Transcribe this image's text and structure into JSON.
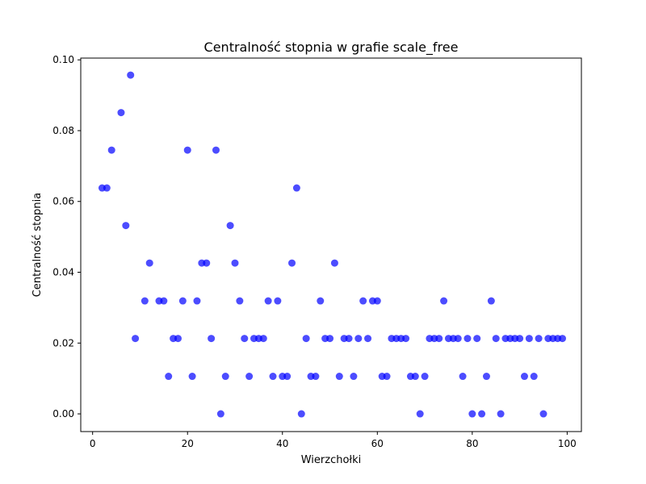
{
  "chart_data": {
    "type": "scatter",
    "title": "Centralność stopnia w grafie scale_free",
    "xlabel": "Wierzchołki",
    "ylabel": "Centralność stopnia",
    "xlim": [
      -2.5,
      103
    ],
    "ylim": [
      -0.005,
      0.1005
    ],
    "xticks": [
      0,
      20,
      40,
      60,
      80,
      100
    ],
    "xtick_labels": [
      "0",
      "20",
      "40",
      "60",
      "80",
      "100"
    ],
    "yticks": [
      0.0,
      0.02,
      0.04,
      0.06,
      0.08,
      0.1
    ],
    "ytick_labels": [
      "0.00",
      "0.02",
      "0.04",
      "0.06",
      "0.08",
      "0.10"
    ],
    "grid": false,
    "marker_color": "#0000ff",
    "marker_alpha": 0.7,
    "series": [
      {
        "x": [
          2,
          3,
          4,
          6,
          7,
          8,
          9,
          11,
          12,
          14,
          15,
          16,
          17,
          18,
          19,
          20,
          21,
          22,
          23,
          24,
          25,
          26,
          27,
          28,
          29,
          30,
          31,
          32,
          33,
          34,
          35,
          36,
          37,
          38,
          39,
          40,
          41,
          42,
          43,
          44,
          45,
          46,
          47,
          48,
          49,
          50,
          51,
          52,
          53,
          54,
          55,
          56,
          57,
          58,
          59,
          60,
          61,
          62,
          63,
          64,
          65,
          66,
          67,
          68,
          69,
          70,
          71,
          72,
          73,
          74,
          75,
          76,
          77,
          78,
          79,
          80,
          81,
          82,
          83,
          84,
          85,
          86,
          87,
          88,
          89,
          90,
          91,
          92,
          93,
          94,
          95,
          96,
          97,
          98,
          99
        ],
        "y": [
          0.0638,
          0.0638,
          0.0745,
          0.0851,
          0.0532,
          0.0957,
          0.0213,
          0.0319,
          0.0426,
          0.0319,
          0.0319,
          0.0106,
          0.0213,
          0.0213,
          0.0319,
          0.0745,
          0.0106,
          0.0319,
          0.0426,
          0.0426,
          0.0213,
          0.0745,
          0.0,
          0.0106,
          0.0532,
          0.0426,
          0.0319,
          0.0213,
          0.0106,
          0.0213,
          0.0213,
          0.0213,
          0.0319,
          0.0106,
          0.0319,
          0.0106,
          0.0106,
          0.0426,
          0.0638,
          0.0,
          0.0213,
          0.0106,
          0.0106,
          0.0319,
          0.0213,
          0.0213,
          0.0426,
          0.0106,
          0.0213,
          0.0213,
          0.0106,
          0.0213,
          0.0319,
          0.0213,
          0.0319,
          0.0319,
          0.0106,
          0.0106,
          0.0213,
          0.0213,
          0.0213,
          0.0213,
          0.0106,
          0.0106,
          0.0,
          0.0106,
          0.0213,
          0.0213,
          0.0213,
          0.0319,
          0.0213,
          0.0213,
          0.0213,
          0.0106,
          0.0213,
          0.0,
          0.0213,
          0.0,
          0.0106,
          0.0319,
          0.0213,
          0.0,
          0.0213,
          0.0213,
          0.0213,
          0.0213,
          0.0106,
          0.0213,
          0.0106,
          0.0213,
          0.0,
          0.0213,
          0.0213,
          0.0213,
          0.0213
        ]
      }
    ]
  }
}
